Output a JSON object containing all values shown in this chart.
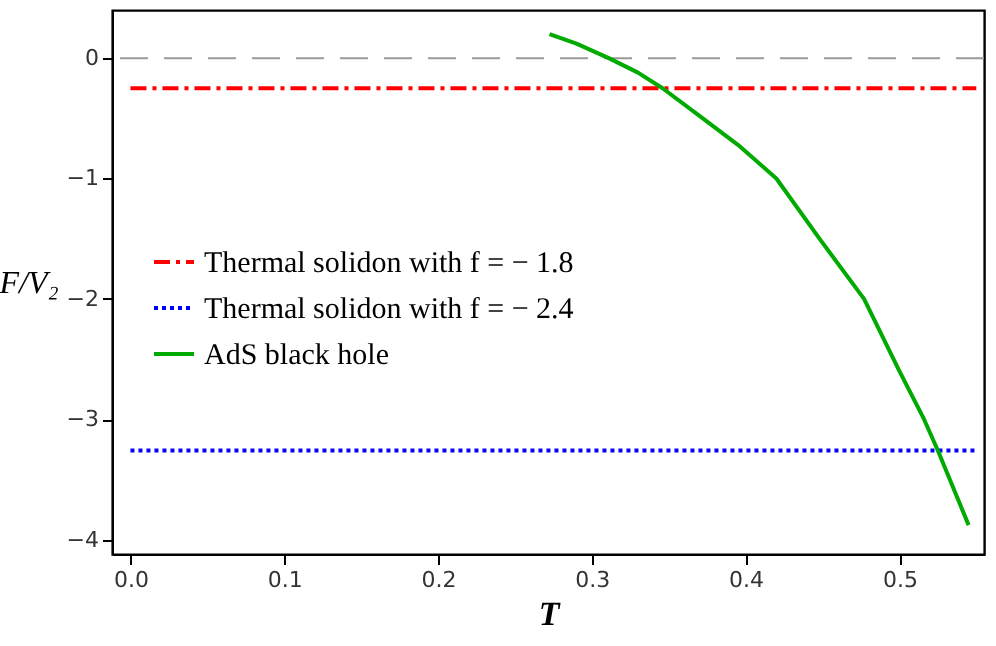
{
  "chart_data": {
    "type": "line",
    "xlabel": "T",
    "ylabel": "F/V₂",
    "xlim": [
      -0.012,
      0.555
    ],
    "ylim": [
      -4.12,
      0.4
    ],
    "xticks": [
      {
        "value": 0,
        "label": "0.0"
      },
      0.1,
      0.2,
      0.3,
      0.4,
      0.5
    ],
    "yticks": [
      -4,
      -3,
      -2,
      -1,
      0
    ],
    "grid": false,
    "legend": "left",
    "ref_lines": [
      {
        "axis": "y",
        "value": 0,
        "color": "#999999",
        "line_style": "dashed"
      }
    ],
    "series": [
      {
        "name": "Thermal solidon with f = − 1.8",
        "color": "#ff0000",
        "line_style": "dashed",
        "x": [
          0,
          0.55
        ],
        "values": [
          -0.25,
          -0.25
        ]
      },
      {
        "name": "Thermal solidon with f = − 2.4",
        "color": "#0000ff",
        "line_style": "dotted",
        "x": [
          0,
          0.55
        ],
        "values": [
          -3.26,
          -3.26
        ]
      },
      {
        "name": "AdS black hole",
        "color": "#00aa00",
        "line_style": "solid",
        "x": [
          0.2725,
          0.29,
          0.311,
          0.33,
          0.346,
          0.37,
          0.395,
          0.42,
          0.448,
          0.477,
          0.5,
          0.516,
          0.525,
          0.545
        ],
        "values": [
          0.2,
          0.12,
          0,
          -0.12,
          -0.25,
          -0.48,
          -0.72,
          -1.0,
          -1.5,
          -2.0,
          -2.6,
          -3.0,
          -3.26,
          -3.88
        ]
      }
    ]
  }
}
